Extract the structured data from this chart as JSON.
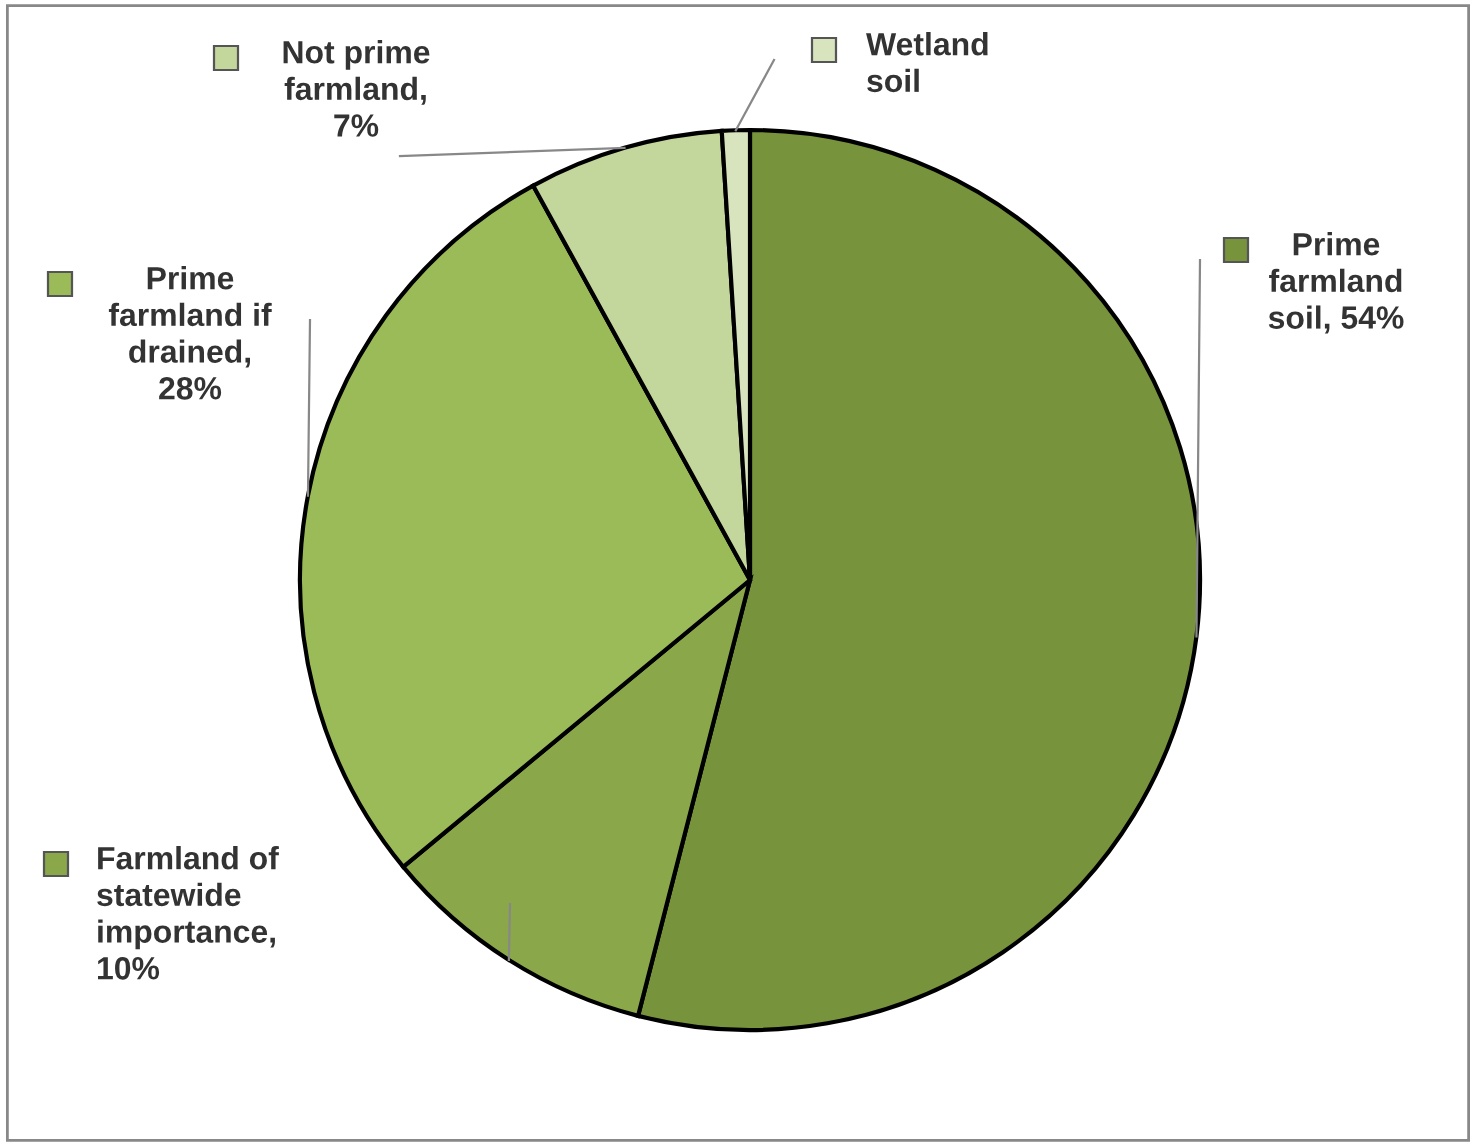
{
  "chart_data": {
    "type": "pie",
    "categories": [
      "Prime\nfarmland\nsoil, 54%",
      "Farmland of\nstatewide\nimportance,\n10%",
      "Prime\nfarmland if\ndrained,\n28%",
      "Not prime\nfarmland,\n7%",
      "Wetland\nsoil"
    ],
    "values": [
      54,
      10,
      28,
      7,
      1
    ],
    "colors": [
      "#77933c",
      "#8aa84a",
      "#9bbb59",
      "#c3d69b",
      "#d7e4bd"
    ],
    "legend": "right"
  }
}
